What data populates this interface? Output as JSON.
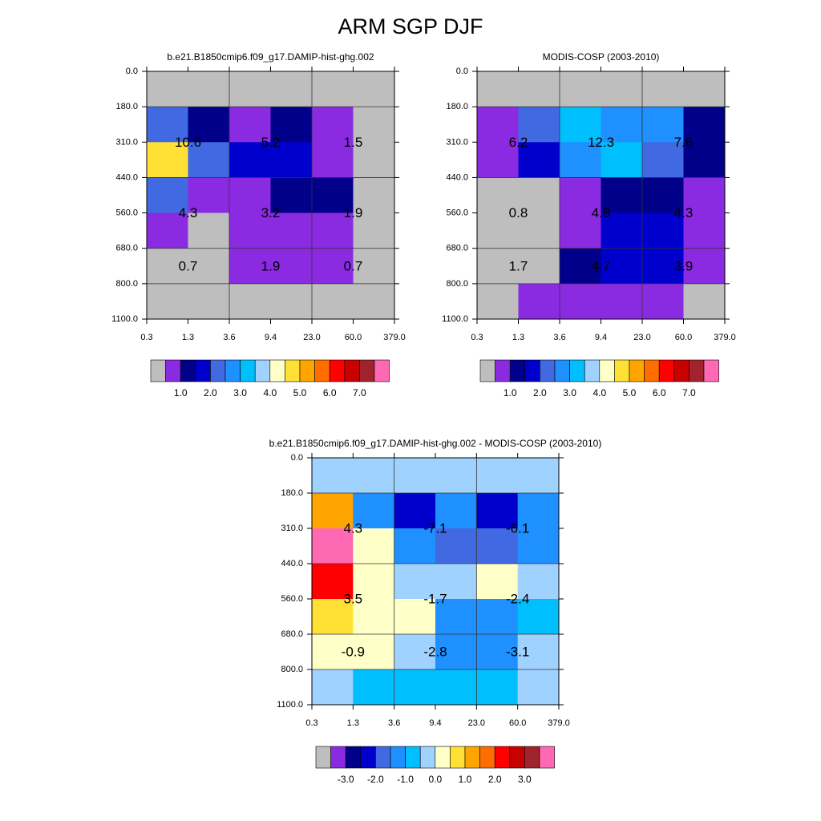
{
  "title": "ARM SGP DJF",
  "palette": {
    "colors": [
      "#bebebe",
      "#8a2be2",
      "#00008b",
      "#0000cd",
      "#4169e1",
      "#1e90ff",
      "#00bfff",
      "#a0d2ff",
      "#ffffc8",
      "#ffe135",
      "#ffa500",
      "#ff6d00",
      "#ff0000",
      "#c80000",
      "#a0232d",
      "#ff69b4"
    ]
  },
  "chart_data": [
    {
      "type": "heatmap",
      "title": "b.e21.B1850cmip6.f09_g17.DAMIP-hist-ghg.002",
      "x_ticks": [
        "0.3",
        "1.3",
        "3.6",
        "9.4",
        "23.0",
        "60.0",
        "379.0"
      ],
      "y_ticks": [
        "0.0",
        "180.0",
        "310.0",
        "440.0",
        "560.0",
        "680.0",
        "800.0",
        "1100.0"
      ],
      "cell_color_index": [
        [
          0,
          0,
          0,
          0,
          0,
          0
        ],
        [
          4,
          2,
          1,
          2,
          1,
          0
        ],
        [
          9,
          4,
          3,
          3,
          1,
          0
        ],
        [
          4,
          1,
          1,
          2,
          2,
          0
        ],
        [
          1,
          0,
          1,
          1,
          1,
          0
        ],
        [
          0,
          0,
          1,
          1,
          1,
          0
        ],
        [
          0,
          0,
          0,
          0,
          0,
          0
        ]
      ],
      "block_labels": [
        {
          "x_block": 0,
          "y_block": 0,
          "text": "10.6"
        },
        {
          "x_block": 1,
          "y_block": 0,
          "text": "5.2"
        },
        {
          "x_block": 2,
          "y_block": 0,
          "text": "1.5"
        },
        {
          "x_block": 0,
          "y_block": 1,
          "text": "4.3"
        },
        {
          "x_block": 1,
          "y_block": 1,
          "text": "3.2"
        },
        {
          "x_block": 2,
          "y_block": 1,
          "text": "1.9"
        },
        {
          "x_block": 0,
          "y_block": 2,
          "text": "0.7"
        },
        {
          "x_block": 1,
          "y_block": 2,
          "text": "1.9"
        },
        {
          "x_block": 2,
          "y_block": 2,
          "text": "0.7"
        }
      ],
      "colorbar_labels": [
        "1.0",
        "2.0",
        "3.0",
        "4.0",
        "5.0",
        "6.0",
        "7.0"
      ]
    },
    {
      "type": "heatmap",
      "title": "MODIS-COSP (2003-2010)",
      "x_ticks": [
        "0.3",
        "1.3",
        "3.6",
        "9.4",
        "23.0",
        "60.0",
        "379.0"
      ],
      "y_ticks": [
        "0.0",
        "180.0",
        "310.0",
        "440.0",
        "560.0",
        "680.0",
        "800.0",
        "1100.0"
      ],
      "cell_color_index": [
        [
          0,
          0,
          0,
          0,
          0,
          0
        ],
        [
          1,
          4,
          6,
          5,
          5,
          2
        ],
        [
          1,
          3,
          5,
          6,
          4,
          2
        ],
        [
          0,
          0,
          1,
          2,
          2,
          1
        ],
        [
          0,
          0,
          1,
          3,
          3,
          1
        ],
        [
          0,
          0,
          2,
          3,
          3,
          1
        ],
        [
          0,
          1,
          1,
          1,
          1,
          0
        ]
      ],
      "block_labels": [
        {
          "x_block": 0,
          "y_block": 0,
          "text": "6.2"
        },
        {
          "x_block": 1,
          "y_block": 0,
          "text": "12.3"
        },
        {
          "x_block": 2,
          "y_block": 0,
          "text": "7.6"
        },
        {
          "x_block": 0,
          "y_block": 1,
          "text": "0.8"
        },
        {
          "x_block": 1,
          "y_block": 1,
          "text": "4.8"
        },
        {
          "x_block": 2,
          "y_block": 1,
          "text": "4.3"
        },
        {
          "x_block": 0,
          "y_block": 2,
          "text": "1.7"
        },
        {
          "x_block": 1,
          "y_block": 2,
          "text": "4.7"
        },
        {
          "x_block": 2,
          "y_block": 2,
          "text": "3.9"
        }
      ],
      "colorbar_labels": [
        "1.0",
        "2.0",
        "3.0",
        "4.0",
        "5.0",
        "6.0",
        "7.0"
      ]
    },
    {
      "type": "heatmap",
      "title": "b.e21.B1850cmip6.f09_g17.DAMIP-hist-ghg.002 - MODIS-COSP (2003-2010)",
      "x_ticks": [
        "0.3",
        "1.3",
        "3.6",
        "9.4",
        "23.0",
        "60.0",
        "379.0"
      ],
      "y_ticks": [
        "0.0",
        "180.0",
        "310.0",
        "440.0",
        "560.0",
        "680.0",
        "800.0",
        "1100.0"
      ],
      "cell_color_index": [
        [
          7,
          7,
          7,
          7,
          7,
          7
        ],
        [
          10,
          5,
          3,
          5,
          3,
          5
        ],
        [
          15,
          8,
          5,
          4,
          4,
          5
        ],
        [
          12,
          8,
          7,
          7,
          8,
          7
        ],
        [
          9,
          8,
          8,
          5,
          5,
          6
        ],
        [
          8,
          8,
          7,
          5,
          5,
          7
        ],
        [
          7,
          6,
          6,
          6,
          6,
          7
        ]
      ],
      "block_labels": [
        {
          "x_block": 0,
          "y_block": 0,
          "text": "4.3"
        },
        {
          "x_block": 1,
          "y_block": 0,
          "text": "-7.1"
        },
        {
          "x_block": 2,
          "y_block": 0,
          "text": "-6.1"
        },
        {
          "x_block": 0,
          "y_block": 1,
          "text": "3.5"
        },
        {
          "x_block": 1,
          "y_block": 1,
          "text": "-1.7"
        },
        {
          "x_block": 2,
          "y_block": 1,
          "text": "-2.4"
        },
        {
          "x_block": 0,
          "y_block": 2,
          "text": "-0.9"
        },
        {
          "x_block": 1,
          "y_block": 2,
          "text": "-2.8"
        },
        {
          "x_block": 2,
          "y_block": 2,
          "text": "-3.1"
        }
      ],
      "colorbar_labels": [
        "-3.0",
        "-2.0",
        "-1.0",
        "0.0",
        "1.0",
        "2.0",
        "3.0"
      ]
    }
  ]
}
